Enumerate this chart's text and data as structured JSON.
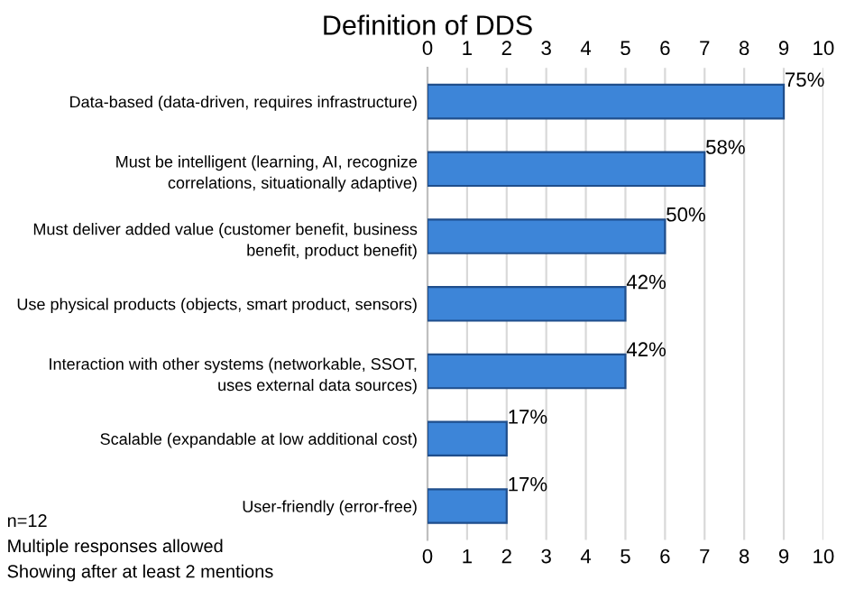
{
  "chart_data": {
    "type": "bar",
    "orientation": "horizontal",
    "title": "Definition of DDS",
    "categories": [
      "Data-based (data-driven, requires infrastructure)",
      "Must be intelligent (learning, AI, recognize\ncorrelations, situationally adaptive)",
      "Must deliver added value (customer benefit, business\nbenefit, product benefit)",
      "Use physical products (objects, smart product, sensors)",
      "Interaction with other systems (networkable, SSOT,\nuses external data sources)",
      "Scalable (expandable at low additional cost)",
      "User-friendly (error-free)"
    ],
    "values": [
      9,
      7,
      6,
      5,
      5,
      2,
      2
    ],
    "color": "#3d85d8",
    "xlim": [
      0,
      10
    ],
    "xticks": [
      0,
      1,
      2,
      3,
      4,
      5,
      6,
      7,
      8,
      9,
      10
    ],
    "x2lim": [
      0,
      10
    ],
    "x2ticks": [
      0,
      1,
      2,
      3,
      4,
      5,
      6,
      7,
      8,
      9,
      10
    ],
    "grid": "x",
    "legend": false,
    "annotations": [
      "n=12",
      "Multiple responses allowed",
      "Showing after at least 2 mentions",
      {
        "text": "75%",
        "x": 9,
        "y": "Data-based (data-driven, requires infrastructure)"
      },
      {
        "text": "58%",
        "x": 7,
        "y": "Must be intelligent (learning, AI, recognize\ncorrelations, situationally adaptive)"
      },
      {
        "text": "50%",
        "x": 6,
        "y": "Must deliver added value (customer benefit, business\nbenefit, product benefit)"
      },
      {
        "text": "42%",
        "x": 5,
        "y": "Use physical products (objects, smart product, sensors)"
      },
      {
        "text": "42%",
        "x": 5,
        "y": "Interaction with other systems (networkable, SSOT,\nuses external data sources)"
      },
      {
        "text": "17%",
        "x": 2,
        "y": "Scalable (expandable at low additional cost)"
      },
      {
        "text": "17%",
        "x": 2,
        "y": "User-friendly (error-free)"
      }
    ]
  }
}
